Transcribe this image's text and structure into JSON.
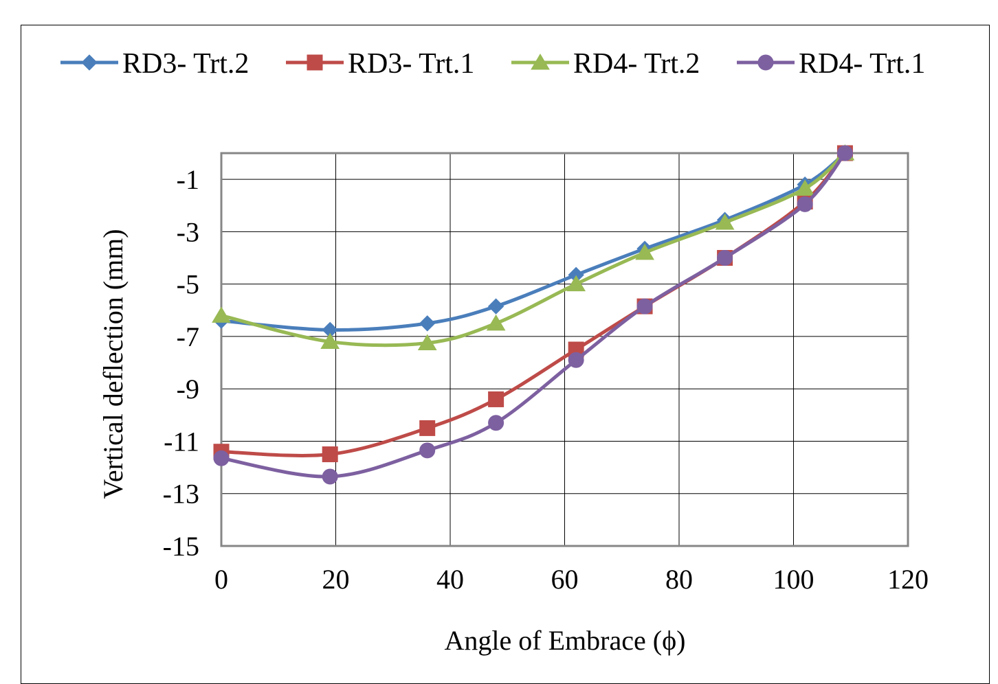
{
  "chart_data": {
    "type": "line",
    "title": "",
    "xlabel": "Angle of Embrace (ϕ)",
    "ylabel": "Vertical deflection  (mm)",
    "xlim": [
      0,
      120
    ],
    "ylim": [
      -15,
      1
    ],
    "xticks": [
      0,
      20,
      40,
      60,
      80,
      100,
      120
    ],
    "yticks": [
      -1,
      -3,
      -5,
      -7,
      -9,
      -11,
      -13,
      -15
    ],
    "grid": true,
    "legend_position": "top",
    "x": [
      0,
      19,
      36,
      48,
      62,
      74,
      88,
      102,
      109
    ],
    "series": [
      {
        "name": "RD3- Trt.2",
        "color": "#4A7EBB",
        "marker": "diamond",
        "values": [
          -6.4,
          -6.75,
          -6.5,
          -5.85,
          -4.65,
          -3.65,
          -2.55,
          -1.2,
          0
        ]
      },
      {
        "name": "RD3- Trt.1",
        "color": "#BE4B48",
        "marker": "square",
        "values": [
          -11.4,
          -11.5,
          -10.5,
          -9.4,
          -7.5,
          -5.85,
          -4.0,
          -1.85,
          0
        ]
      },
      {
        "name": "RD4- Trt.2",
        "color": "#98B954",
        "marker": "triangle",
        "values": [
          -6.2,
          -7.2,
          -7.25,
          -6.5,
          -5.0,
          -3.8,
          -2.65,
          -1.35,
          0
        ]
      },
      {
        "name": "RD4- Trt.1",
        "color": "#7D60A0",
        "marker": "circle",
        "values": [
          -11.65,
          -12.35,
          -11.35,
          -10.3,
          -7.9,
          -5.85,
          -4.0,
          -1.95,
          0
        ]
      }
    ]
  }
}
